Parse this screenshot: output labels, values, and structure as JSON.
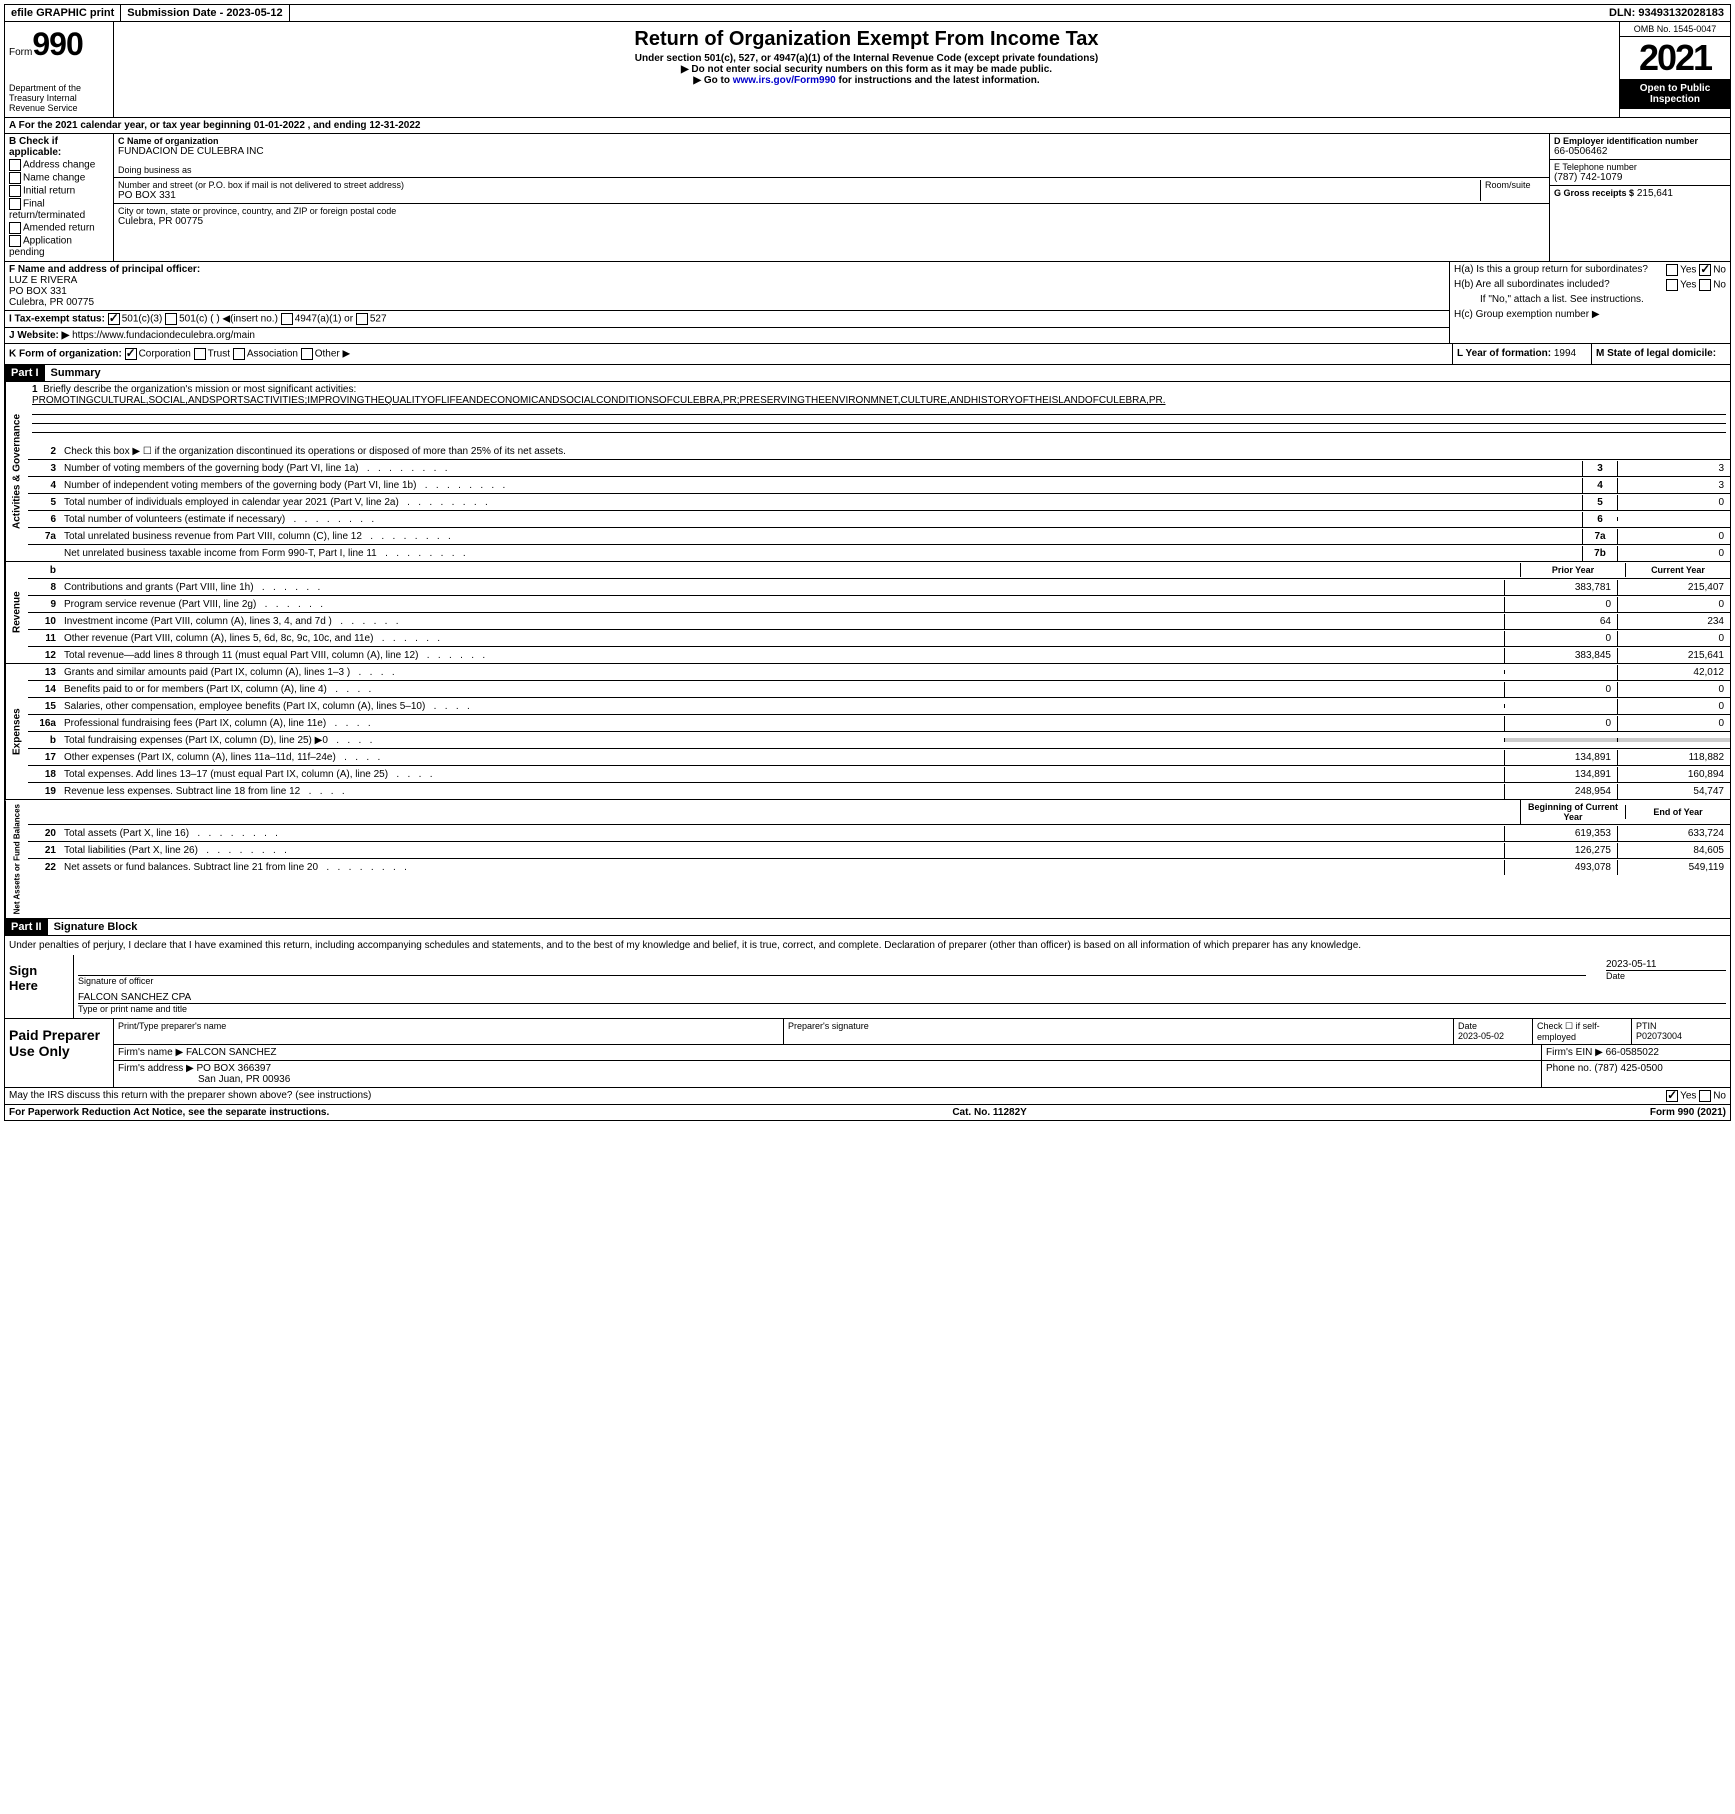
{
  "topbar": {
    "efile": "efile GRAPHIC print",
    "submission": "Submission Date - 2023-05-12",
    "dln": "DLN: 93493132028183"
  },
  "header": {
    "form_label": "Form",
    "form_num": "990",
    "dept": "Department of the Treasury Internal Revenue Service",
    "title": "Return of Organization Exempt From Income Tax",
    "subtitle1": "Under section 501(c), 527, or 4947(a)(1) of the Internal Revenue Code (except private foundations)",
    "subtitle2": "▶ Do not enter social security numbers on this form as it may be made public.",
    "subtitle3_pre": "▶ Go to ",
    "subtitle3_link": "www.irs.gov/Form990",
    "subtitle3_post": " for instructions and the latest information.",
    "omb": "OMB No. 1545-0047",
    "year": "2021",
    "inspection": "Open to Public Inspection"
  },
  "section_a": "A For the 2021 calendar year, or tax year beginning 01-01-2022   , and ending 12-31-2022",
  "col_b": {
    "header": "B Check if applicable:",
    "items": [
      "Address change",
      "Name change",
      "Initial return",
      "Final return/terminated",
      "Amended return",
      "Application pending"
    ]
  },
  "col_c": {
    "name_label": "C Name of organization",
    "name": "FUNDACION DE CULEBRA INC",
    "dba_label": "Doing business as",
    "dba": "",
    "addr_label": "Number and street (or P.O. box if mail is not delivered to street address)",
    "room_label": "Room/suite",
    "addr": "PO BOX 331",
    "city_label": "City or town, state or province, country, and ZIP or foreign postal code",
    "city": "Culebra, PR  00775"
  },
  "col_d": {
    "ein_label": "D Employer identification number",
    "ein": "66-0506462",
    "phone_label": "E Telephone number",
    "phone": "(787) 742-1079",
    "gross_label": "G Gross receipts $",
    "gross": "215,641"
  },
  "row_f": {
    "label": "F  Name and address of principal officer:",
    "name": "LUZ E RIVERA",
    "addr1": "PO BOX 331",
    "addr2": "Culebra, PR  00775"
  },
  "row_h": {
    "ha": "H(a)  Is this a group return for subordinates?",
    "hb": "H(b)  Are all subordinates included?",
    "hb_note": "If \"No,\" attach a list. See instructions.",
    "hc": "H(c)  Group exemption number ▶",
    "yes": "Yes",
    "no": "No"
  },
  "row_i": {
    "label": "I  Tax-exempt status:",
    "opt1": "501(c)(3)",
    "opt2": "501(c) (  ) ◀(insert no.)",
    "opt3": "4947(a)(1) or",
    "opt4": "527"
  },
  "row_j": {
    "label": "J  Website: ▶",
    "url": "https://www.fundaciondeculebra.org/main"
  },
  "row_k": {
    "label": "K Form of organization:",
    "opts": [
      "Corporation",
      "Trust",
      "Association",
      "Other ▶"
    ],
    "l_label": "L Year of formation:",
    "l_val": "1994",
    "m_label": "M State of legal domicile:",
    "m_val": ""
  },
  "part1": {
    "header": "Part I",
    "title": "Summary",
    "line1_label": "Briefly describe the organization's mission or most significant activities:",
    "line1_text": "PROMOTINGCULTURAL,SOCIAL,ANDSPORTSACTIVITIES;IMPROVINGTHEQUALITYOFLIFEANDECONOMICANDSOCIALCONDITIONSOFCULEBRA,PR;PRESERVINGTHEENVIRONMNET,CULTURE,ANDHISTORYOFTHEISLANDOFCULEBRA,PR.",
    "line2": "Check this box ▶ ☐ if the organization discontinued its operations or disposed of more than 25% of its net assets.",
    "gov_lines": [
      {
        "num": "3",
        "desc": "Number of voting members of the governing body (Part VI, line 1a)",
        "box": "3",
        "val": "3"
      },
      {
        "num": "4",
        "desc": "Number of independent voting members of the governing body (Part VI, line 1b)",
        "box": "4",
        "val": "3"
      },
      {
        "num": "5",
        "desc": "Total number of individuals employed in calendar year 2021 (Part V, line 2a)",
        "box": "5",
        "val": "0"
      },
      {
        "num": "6",
        "desc": "Total number of volunteers (estimate if necessary)",
        "box": "6",
        "val": ""
      },
      {
        "num": "7a",
        "desc": "Total unrelated business revenue from Part VIII, column (C), line 12",
        "box": "7a",
        "val": "0"
      },
      {
        "num": "",
        "desc": "Net unrelated business taxable income from Form 990-T, Part I, line 11",
        "box": "7b",
        "val": "0"
      }
    ],
    "col_headers": {
      "b": "b",
      "prior": "Prior Year",
      "current": "Current Year"
    },
    "revenue_label": "Revenue",
    "revenue_lines": [
      {
        "num": "8",
        "desc": "Contributions and grants (Part VIII, line 1h)",
        "prior": "383,781",
        "current": "215,407"
      },
      {
        "num": "9",
        "desc": "Program service revenue (Part VIII, line 2g)",
        "prior": "0",
        "current": "0"
      },
      {
        "num": "10",
        "desc": "Investment income (Part VIII, column (A), lines 3, 4, and 7d )",
        "prior": "64",
        "current": "234"
      },
      {
        "num": "11",
        "desc": "Other revenue (Part VIII, column (A), lines 5, 6d, 8c, 9c, 10c, and 11e)",
        "prior": "0",
        "current": "0"
      },
      {
        "num": "12",
        "desc": "Total revenue—add lines 8 through 11 (must equal Part VIII, column (A), line 12)",
        "prior": "383,845",
        "current": "215,641"
      }
    ],
    "expenses_label": "Expenses",
    "expense_lines": [
      {
        "num": "13",
        "desc": "Grants and similar amounts paid (Part IX, column (A), lines 1–3 )",
        "prior": "",
        "current": "42,012"
      },
      {
        "num": "14",
        "desc": "Benefits paid to or for members (Part IX, column (A), line 4)",
        "prior": "0",
        "current": "0"
      },
      {
        "num": "15",
        "desc": "Salaries, other compensation, employee benefits (Part IX, column (A), lines 5–10)",
        "prior": "",
        "current": "0"
      },
      {
        "num": "16a",
        "desc": "Professional fundraising fees (Part IX, column (A), line 11e)",
        "prior": "0",
        "current": "0"
      },
      {
        "num": "b",
        "desc": "Total fundraising expenses (Part IX, column (D), line 25) ▶0",
        "prior": "SHADED",
        "current": "SHADED"
      },
      {
        "num": "17",
        "desc": "Other expenses (Part IX, column (A), lines 11a–11d, 11f–24e)",
        "prior": "134,891",
        "current": "118,882"
      },
      {
        "num": "18",
        "desc": "Total expenses. Add lines 13–17 (must equal Part IX, column (A), line 25)",
        "prior": "134,891",
        "current": "160,894"
      },
      {
        "num": "19",
        "desc": "Revenue less expenses. Subtract line 18 from line 12",
        "prior": "248,954",
        "current": "54,747"
      }
    ],
    "netassets_label": "Net Assets or Fund Balances",
    "net_headers": {
      "begin": "Beginning of Current Year",
      "end": "End of Year"
    },
    "net_lines": [
      {
        "num": "20",
        "desc": "Total assets (Part X, line 16)",
        "prior": "619,353",
        "current": "633,724"
      },
      {
        "num": "21",
        "desc": "Total liabilities (Part X, line 26)",
        "prior": "126,275",
        "current": "84,605"
      },
      {
        "num": "22",
        "desc": "Net assets or fund balances. Subtract line 21 from line 20",
        "prior": "493,078",
        "current": "549,119"
      }
    ]
  },
  "part2": {
    "header": "Part II",
    "title": "Signature Block",
    "declaration": "Under penalties of perjury, I declare that I have examined this return, including accompanying schedules and statements, and to the best of my knowledge and belief, it is true, correct, and complete. Declaration of preparer (other than officer) is based on all information of which preparer has any knowledge.",
    "sign_here": "Sign Here",
    "sig_officer": "Signature of officer",
    "sig_date": "2023-05-11",
    "date_label": "Date",
    "print_name": "FALCON SANCHEZ  CPA",
    "print_label": "Type or print name and title"
  },
  "preparer": {
    "label": "Paid Preparer Use Only",
    "h_name": "Print/Type preparer's name",
    "h_sig": "Preparer's signature",
    "h_date": "Date",
    "date_val": "2023-05-02",
    "h_check": "Check ☐ if self-employed",
    "h_ptin": "PTIN",
    "ptin": "P02073004",
    "firm_name_label": "Firm's name    ▶",
    "firm_name": "FALCON SANCHEZ",
    "firm_ein_label": "Firm's EIN ▶",
    "firm_ein": "66-0585022",
    "firm_addr_label": "Firm's address ▶",
    "firm_addr1": "PO BOX 366397",
    "firm_addr2": "San Juan, PR  00936",
    "phone_label": "Phone no.",
    "phone": "(787) 425-0500"
  },
  "footer": {
    "discuss": "May the IRS discuss this return with the preparer shown above? (see instructions)",
    "yes": "Yes",
    "no": "No",
    "paperwork": "For Paperwork Reduction Act Notice, see the separate instructions.",
    "cat": "Cat. No. 11282Y",
    "form": "Form 990 (2021)"
  },
  "gov_label": "Activities & Governance"
}
